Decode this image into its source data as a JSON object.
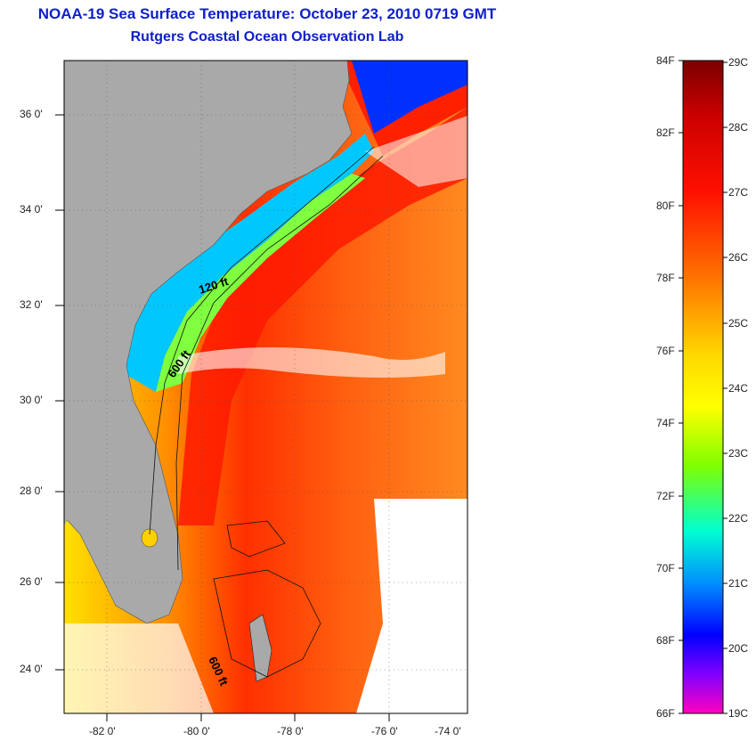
{
  "header": {
    "title": "NOAA-19 Sea Surface Temperature:  October 23, 2010 0719 GMT",
    "subtitle": "Rutgers Coastal Ocean Observation Lab"
  },
  "map": {
    "lon_ticks": [
      "-82 0'",
      "-80 0'",
      "-78 0'",
      "-76 0'",
      "-74 0'"
    ],
    "lat_ticks": [
      "36 0'",
      "34 0'",
      "32 0'",
      "30 0'",
      "28 0'",
      "26 0'",
      "24 0'"
    ],
    "contour_labels": [
      "120 ft",
      "600 ft",
      "600 ft"
    ],
    "colors": {
      "land": "#a9a9a9",
      "frame": "#000000",
      "grid": "#666666"
    }
  },
  "colorbar": {
    "fahrenheit_labels": [
      "84F",
      "82F",
      "80F",
      "78F",
      "76F",
      "74F",
      "72F",
      "70F",
      "68F",
      "66F"
    ],
    "celsius_labels": [
      "29C",
      "28C",
      "27C",
      "26C",
      "25C",
      "24C",
      "23C",
      "22C",
      "21C",
      "20C",
      "19C"
    ],
    "gradient_colors": [
      "#8b0000",
      "#ff0000",
      "#ff6a00",
      "#ffd000",
      "#ffff00",
      "#7fff00",
      "#00ffff",
      "#0080ff",
      "#0000ff",
      "#8000ff",
      "#ff00ff"
    ]
  }
}
